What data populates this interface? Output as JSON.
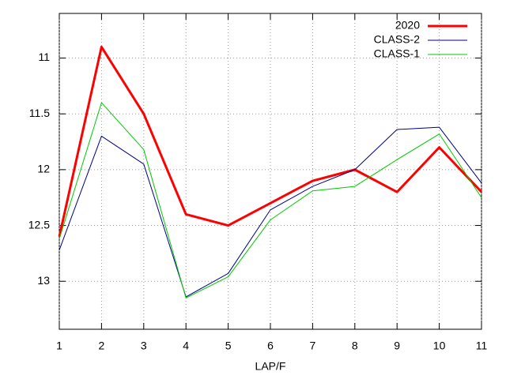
{
  "chart_data": {
    "type": "line",
    "x_label": "LAP/F",
    "x": [
      1,
      2,
      3,
      4,
      5,
      6,
      7,
      8,
      9,
      10,
      11
    ],
    "xlim": [
      1,
      11
    ],
    "xticks": [
      1,
      2,
      3,
      4,
      5,
      6,
      7,
      8,
      9,
      10,
      11
    ],
    "ylim": [
      10.6,
      13.43
    ],
    "yticks": [
      11,
      11.5,
      12,
      12.5,
      13
    ],
    "y_reversed": true,
    "grid": true,
    "legend": "top-right",
    "series": [
      {
        "name": "2020",
        "color": "#ff0000",
        "width": 3,
        "values": [
          12.6,
          10.9,
          11.5,
          12.4,
          12.5,
          12.3,
          12.1,
          12.0,
          12.2,
          11.8,
          12.2
        ]
      },
      {
        "name": "CLASS-2",
        "color": "#00008b",
        "width": 1,
        "values": [
          12.72,
          11.7,
          11.95,
          13.14,
          12.93,
          12.36,
          12.15,
          12.0,
          11.64,
          11.62,
          12.12
        ]
      },
      {
        "name": "CLASS-1",
        "color": "#00c800",
        "width": 1,
        "values": [
          12.62,
          11.4,
          11.82,
          13.15,
          12.96,
          12.45,
          12.19,
          12.15,
          11.91,
          11.68,
          12.25
        ]
      }
    ]
  }
}
